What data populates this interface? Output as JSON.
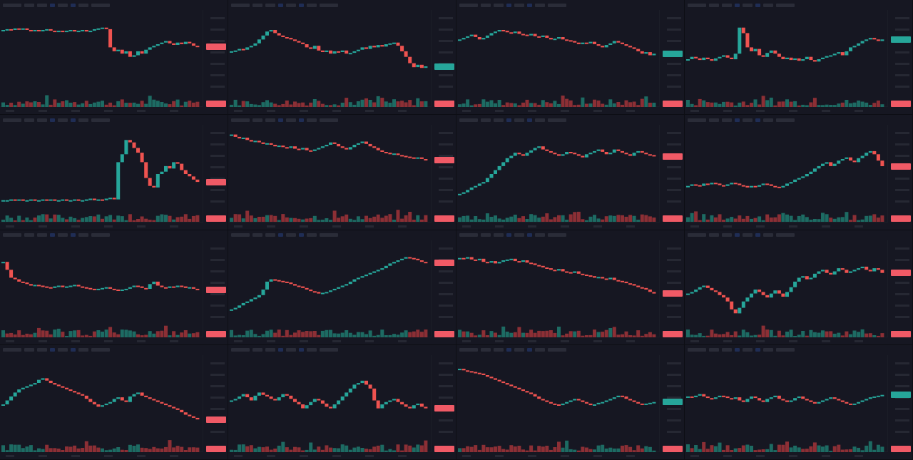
{
  "layout": {
    "rows": 4,
    "cols": 4
  },
  "colors": {
    "background": "#13141c",
    "panel": "#161722",
    "up": "#26a69a",
    "down": "#ef5350",
    "up_volume": "#1d6b63",
    "down_volume": "#8c2f35",
    "price_tag": "#f05a66",
    "price_tag_up": "#26a69a",
    "grid_line": "#1c1e28"
  },
  "chart_data": [
    {
      "type": "line",
      "style": "candlestick",
      "grid": false,
      "values": [
        82,
        83,
        82,
        84,
        83,
        84,
        82,
        81,
        82,
        81,
        82,
        83,
        81,
        80,
        81,
        80,
        81,
        82,
        80,
        81,
        82,
        80,
        81,
        83,
        84,
        85,
        83,
        60,
        55,
        57,
        52,
        55,
        48,
        50,
        55,
        52,
        57,
        60,
        62,
        64,
        66,
        68,
        65,
        63,
        66,
        64,
        67,
        65,
        62,
        61
      ]
    },
    {
      "type": "line",
      "style": "candlestick",
      "grid": false,
      "values": [
        55,
        56,
        58,
        57,
        60,
        62,
        65,
        70,
        75,
        80,
        82,
        78,
        75,
        73,
        72,
        70,
        68,
        66,
        64,
        60,
        58,
        62,
        56,
        54,
        56,
        52,
        55,
        54,
        56,
        52,
        53,
        55,
        57,
        60,
        58,
        62,
        60,
        63,
        61,
        64,
        65,
        66,
        62,
        55,
        48,
        40,
        35,
        38,
        34,
        36
      ]
    },
    {
      "type": "line",
      "style": "candlestick",
      "grid": false,
      "values": [
        70,
        72,
        74,
        76,
        73,
        70,
        72,
        75,
        78,
        80,
        82,
        81,
        79,
        78,
        80,
        77,
        76,
        75,
        77,
        74,
        73,
        75,
        72,
        70,
        71,
        73,
        70,
        69,
        68,
        66,
        64,
        66,
        65,
        67,
        64,
        62,
        60,
        63,
        65,
        68,
        66,
        64,
        62,
        60,
        58,
        55,
        52,
        54,
        50,
        52
      ]
    },
    {
      "type": "line",
      "style": "candlestick",
      "grid": false,
      "values": [
        45,
        48,
        46,
        44,
        47,
        45,
        43,
        46,
        48,
        50,
        47,
        45,
        52,
        85,
        78,
        60,
        55,
        58,
        50,
        48,
        53,
        56,
        52,
        48,
        45,
        47,
        44,
        46,
        43,
        45,
        48,
        44,
        42,
        45,
        47,
        49,
        50,
        52,
        54,
        50,
        55,
        60,
        62,
        65,
        68,
        70,
        72,
        70,
        68,
        70
      ]
    },
    {
      "type": "line",
      "style": "candlestick",
      "grid": false,
      "values": [
        12,
        12,
        13,
        12,
        13,
        12,
        12,
        13,
        12,
        12,
        13,
        12,
        13,
        12,
        12,
        13,
        12,
        12,
        13,
        12,
        12,
        13,
        14,
        12,
        13,
        12,
        14,
        15,
        13,
        60,
        70,
        88,
        85,
        78,
        72,
        60,
        40,
        30,
        28,
        45,
        48,
        55,
        52,
        60,
        58,
        50,
        45,
        42,
        38,
        35
      ]
    },
    {
      "type": "line",
      "style": "candlestick",
      "grid": false,
      "values": [
        95,
        92,
        90,
        91,
        88,
        86,
        87,
        85,
        83,
        84,
        82,
        80,
        81,
        79,
        78,
        80,
        77,
        76,
        78,
        75,
        74,
        76,
        78,
        80,
        82,
        85,
        83,
        80,
        78,
        76,
        79,
        82,
        84,
        86,
        83,
        80,
        78,
        75,
        73,
        72,
        70,
        71,
        69,
        68,
        67,
        66,
        65,
        66,
        64,
        63
      ]
    },
    {
      "type": "line",
      "style": "candlestick",
      "grid": false,
      "values": [
        20,
        22,
        25,
        28,
        30,
        33,
        35,
        40,
        45,
        50,
        55,
        60,
        65,
        68,
        72,
        70,
        68,
        72,
        75,
        78,
        80,
        76,
        74,
        72,
        70,
        68,
        70,
        73,
        72,
        70,
        68,
        66,
        70,
        72,
        74,
        76,
        73,
        70,
        72,
        76,
        74,
        72,
        70,
        68,
        72,
        74,
        72,
        70,
        69,
        68
      ]
    },
    {
      "type": "line",
      "style": "candlestick",
      "grid": false,
      "values": [
        30,
        32,
        31,
        30,
        33,
        32,
        34,
        33,
        31,
        30,
        32,
        34,
        33,
        31,
        30,
        28,
        30,
        29,
        31,
        33,
        32,
        30,
        29,
        28,
        30,
        33,
        35,
        38,
        40,
        42,
        45,
        48,
        52,
        55,
        58,
        60,
        55,
        58,
        62,
        64,
        66,
        62,
        60,
        65,
        68,
        72,
        74,
        70,
        62,
        55
      ]
    },
    {
      "type": "line",
      "style": "candlestick",
      "grid": false,
      "values": [
        80,
        70,
        60,
        58,
        55,
        54,
        52,
        50,
        51,
        50,
        49,
        48,
        47,
        49,
        50,
        48,
        49,
        50,
        51,
        49,
        48,
        47,
        46,
        45,
        46,
        47,
        48,
        46,
        45,
        44,
        45,
        46,
        48,
        50,
        49,
        47,
        46,
        52,
        55,
        50,
        48,
        47,
        49,
        48,
        50,
        49,
        47,
        48,
        46,
        45
      ]
    },
    {
      "type": "line",
      "style": "candlestick",
      "grid": false,
      "values": [
        20,
        22,
        25,
        28,
        30,
        33,
        35,
        38,
        45,
        55,
        58,
        57,
        56,
        55,
        54,
        52,
        50,
        49,
        47,
        45,
        43,
        42,
        40,
        41,
        42,
        44,
        46,
        48,
        50,
        52,
        55,
        58,
        60,
        62,
        64,
        66,
        68,
        70,
        72,
        75,
        78,
        80,
        82,
        84,
        86,
        85,
        84,
        82,
        80,
        79
      ]
    },
    {
      "type": "line",
      "style": "candlestick",
      "grid": false,
      "values": [
        85,
        84,
        86,
        83,
        82,
        84,
        80,
        79,
        81,
        78,
        80,
        82,
        83,
        84,
        81,
        80,
        82,
        79,
        78,
        76,
        75,
        73,
        72,
        70,
        69,
        71,
        68,
        67,
        66,
        68,
        65,
        64,
        63,
        62,
        60,
        61,
        59,
        58,
        60,
        57,
        56,
        55,
        53,
        52,
        50,
        48,
        47,
        45,
        42,
        40
      ]
    },
    {
      "type": "line",
      "style": "candlestick",
      "grid": false,
      "values": [
        40,
        42,
        45,
        48,
        50,
        47,
        44,
        42,
        38,
        35,
        30,
        20,
        15,
        22,
        30,
        35,
        40,
        45,
        42,
        38,
        35,
        40,
        44,
        40,
        36,
        42,
        48,
        55,
        60,
        62,
        58,
        60,
        65,
        68,
        70,
        66,
        64,
        68,
        72,
        70,
        66,
        68,
        70,
        72,
        74,
        70,
        68,
        72,
        70,
        66
      ]
    },
    {
      "type": "line",
      "style": "candlestick",
      "grid": false,
      "values": [
        45,
        50,
        55,
        60,
        64,
        66,
        68,
        70,
        72,
        76,
        78,
        75,
        72,
        70,
        68,
        66,
        64,
        62,
        60,
        58,
        56,
        52,
        48,
        45,
        42,
        44,
        46,
        48,
        52,
        54,
        50,
        48,
        55,
        58,
        60,
        56,
        54,
        52,
        50,
        48,
        46,
        44,
        42,
        40,
        38,
        35,
        32,
        30,
        28,
        26
      ]
    },
    {
      "type": "line",
      "style": "candlestick",
      "grid": false,
      "values": [
        50,
        52,
        55,
        58,
        54,
        50,
        56,
        60,
        57,
        55,
        52,
        50,
        54,
        58,
        56,
        52,
        48,
        45,
        40,
        44,
        48,
        52,
        50,
        46,
        42,
        40,
        45,
        50,
        55,
        60,
        65,
        70,
        72,
        75,
        70,
        65,
        50,
        40,
        45,
        48,
        50,
        52,
        48,
        45,
        42,
        40,
        44,
        46,
        42,
        40
      ]
    },
    {
      "type": "line",
      "style": "candlestick",
      "grid": false,
      "values": [
        90,
        88,
        87,
        86,
        85,
        84,
        82,
        80,
        78,
        76,
        74,
        72,
        70,
        68,
        66,
        64,
        62,
        60,
        58,
        55,
        52,
        50,
        48,
        46,
        45,
        44,
        46,
        48,
        50,
        52,
        50,
        48,
        46,
        44,
        45,
        47,
        48,
        50,
        52,
        54,
        56,
        55,
        52,
        50,
        48,
        46,
        45,
        46,
        47,
        48
      ]
    },
    {
      "type": "line",
      "style": "candlestick",
      "grid": false,
      "values": [
        55,
        54,
        56,
        58,
        55,
        53,
        52,
        54,
        56,
        55,
        53,
        52,
        54,
        50,
        48,
        52,
        55,
        53,
        50,
        48,
        52,
        54,
        56,
        52,
        50,
        48,
        50,
        53,
        55,
        52,
        50,
        48,
        46,
        48,
        50,
        52,
        54,
        52,
        50,
        48,
        46,
        45,
        46,
        48,
        50,
        52,
        54,
        55,
        56,
        57
      ]
    }
  ]
}
